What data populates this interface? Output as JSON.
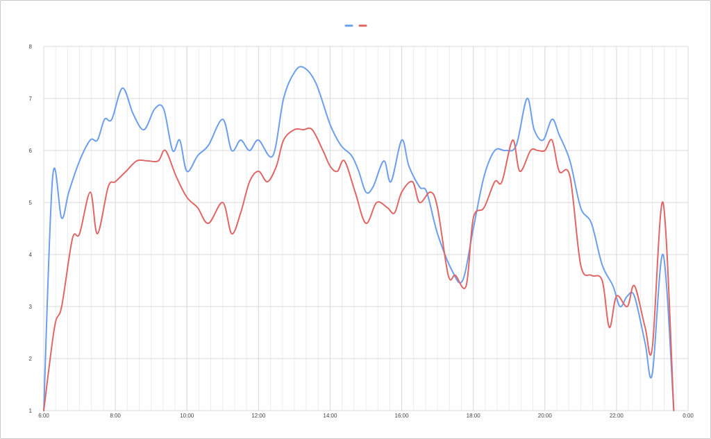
{
  "chart_data": {
    "type": "line",
    "title": "",
    "xlabel": "",
    "ylabel": "",
    "ylim": [
      1,
      8
    ],
    "yticks": [
      1,
      2,
      3,
      4,
      5,
      6,
      7,
      8
    ],
    "xlim": [
      6,
      24
    ],
    "xticks": [
      6,
      8,
      10,
      12,
      14,
      16,
      18,
      20,
      22,
      24
    ],
    "xtick_labels": [
      "6:00",
      "8:00",
      "10:00",
      "12:00",
      "14:00",
      "16:00",
      "18:00",
      "20:00",
      "22:00",
      "0:00"
    ],
    "grid": true,
    "minor_grid_step_hours": 0.333,
    "legend": "top-center",
    "series": [
      {
        "color": "#6d9eeb",
        "x": [
          6.0,
          6.25,
          6.5,
          6.7,
          7.0,
          7.3,
          7.5,
          7.7,
          7.9,
          8.2,
          8.5,
          8.8,
          9.1,
          9.35,
          9.6,
          9.8,
          10.0,
          10.3,
          10.6,
          11.0,
          11.25,
          11.5,
          11.75,
          12.0,
          12.4,
          12.7,
          13.0,
          13.25,
          13.6,
          14.0,
          14.3,
          14.6,
          14.8,
          15.0,
          15.2,
          15.5,
          15.7,
          16.0,
          16.2,
          16.5,
          16.7,
          17.0,
          17.4,
          17.7,
          18.0,
          18.3,
          18.6,
          18.9,
          19.2,
          19.5,
          19.7,
          19.95,
          20.2,
          20.4,
          20.7,
          21.0,
          21.3,
          21.6,
          21.9,
          22.1,
          22.3,
          22.5,
          22.8,
          23.0,
          23.3,
          23.6
        ],
        "y": [
          1.0,
          5.5,
          4.7,
          5.2,
          5.8,
          6.2,
          6.2,
          6.6,
          6.6,
          7.2,
          6.7,
          6.4,
          6.8,
          6.8,
          6.0,
          6.2,
          5.6,
          5.9,
          6.1,
          6.6,
          6.0,
          6.2,
          6.0,
          6.2,
          5.9,
          7.0,
          7.5,
          7.6,
          7.3,
          6.5,
          6.1,
          5.9,
          5.6,
          5.2,
          5.3,
          5.8,
          5.4,
          6.2,
          5.7,
          5.3,
          5.2,
          4.4,
          3.7,
          3.5,
          4.5,
          5.5,
          6.0,
          6.0,
          6.1,
          7.0,
          6.4,
          6.2,
          6.6,
          6.3,
          5.8,
          4.9,
          4.6,
          3.8,
          3.4,
          3.0,
          3.2,
          3.2,
          2.3,
          1.7,
          4.0,
          1.0
        ]
      },
      {
        "color": "#e06666",
        "x": [
          6.0,
          6.3,
          6.5,
          6.8,
          7.0,
          7.3,
          7.5,
          7.8,
          8.0,
          8.3,
          8.6,
          8.9,
          9.2,
          9.4,
          9.7,
          10.0,
          10.3,
          10.6,
          11.0,
          11.25,
          11.5,
          11.75,
          12.0,
          12.25,
          12.5,
          12.7,
          13.0,
          13.25,
          13.5,
          13.8,
          14.0,
          14.2,
          14.4,
          14.7,
          15.0,
          15.3,
          15.6,
          15.8,
          16.0,
          16.3,
          16.5,
          16.8,
          17.0,
          17.3,
          17.5,
          17.8,
          18.0,
          18.3,
          18.6,
          18.8,
          19.1,
          19.3,
          19.6,
          19.8,
          20.0,
          20.2,
          20.4,
          20.7,
          21.0,
          21.3,
          21.6,
          21.8,
          22.0,
          22.3,
          22.5,
          22.8,
          23.0,
          23.3,
          23.6
        ],
        "y": [
          1.0,
          2.6,
          3.0,
          4.3,
          4.4,
          5.2,
          4.4,
          5.3,
          5.4,
          5.6,
          5.8,
          5.8,
          5.8,
          6.0,
          5.5,
          5.1,
          4.9,
          4.6,
          5.0,
          4.4,
          4.8,
          5.4,
          5.6,
          5.4,
          5.7,
          6.2,
          6.4,
          6.4,
          6.4,
          6.0,
          5.7,
          5.6,
          5.8,
          5.2,
          4.6,
          5.0,
          4.9,
          4.8,
          5.2,
          5.4,
          5.0,
          5.2,
          4.9,
          3.6,
          3.6,
          3.4,
          4.7,
          4.9,
          5.4,
          5.4,
          6.2,
          5.6,
          6.0,
          6.0,
          6.0,
          6.2,
          5.6,
          5.5,
          3.8,
          3.6,
          3.5,
          2.6,
          3.2,
          3.0,
          3.4,
          2.6,
          2.2,
          5.0,
          1.0
        ]
      }
    ]
  }
}
